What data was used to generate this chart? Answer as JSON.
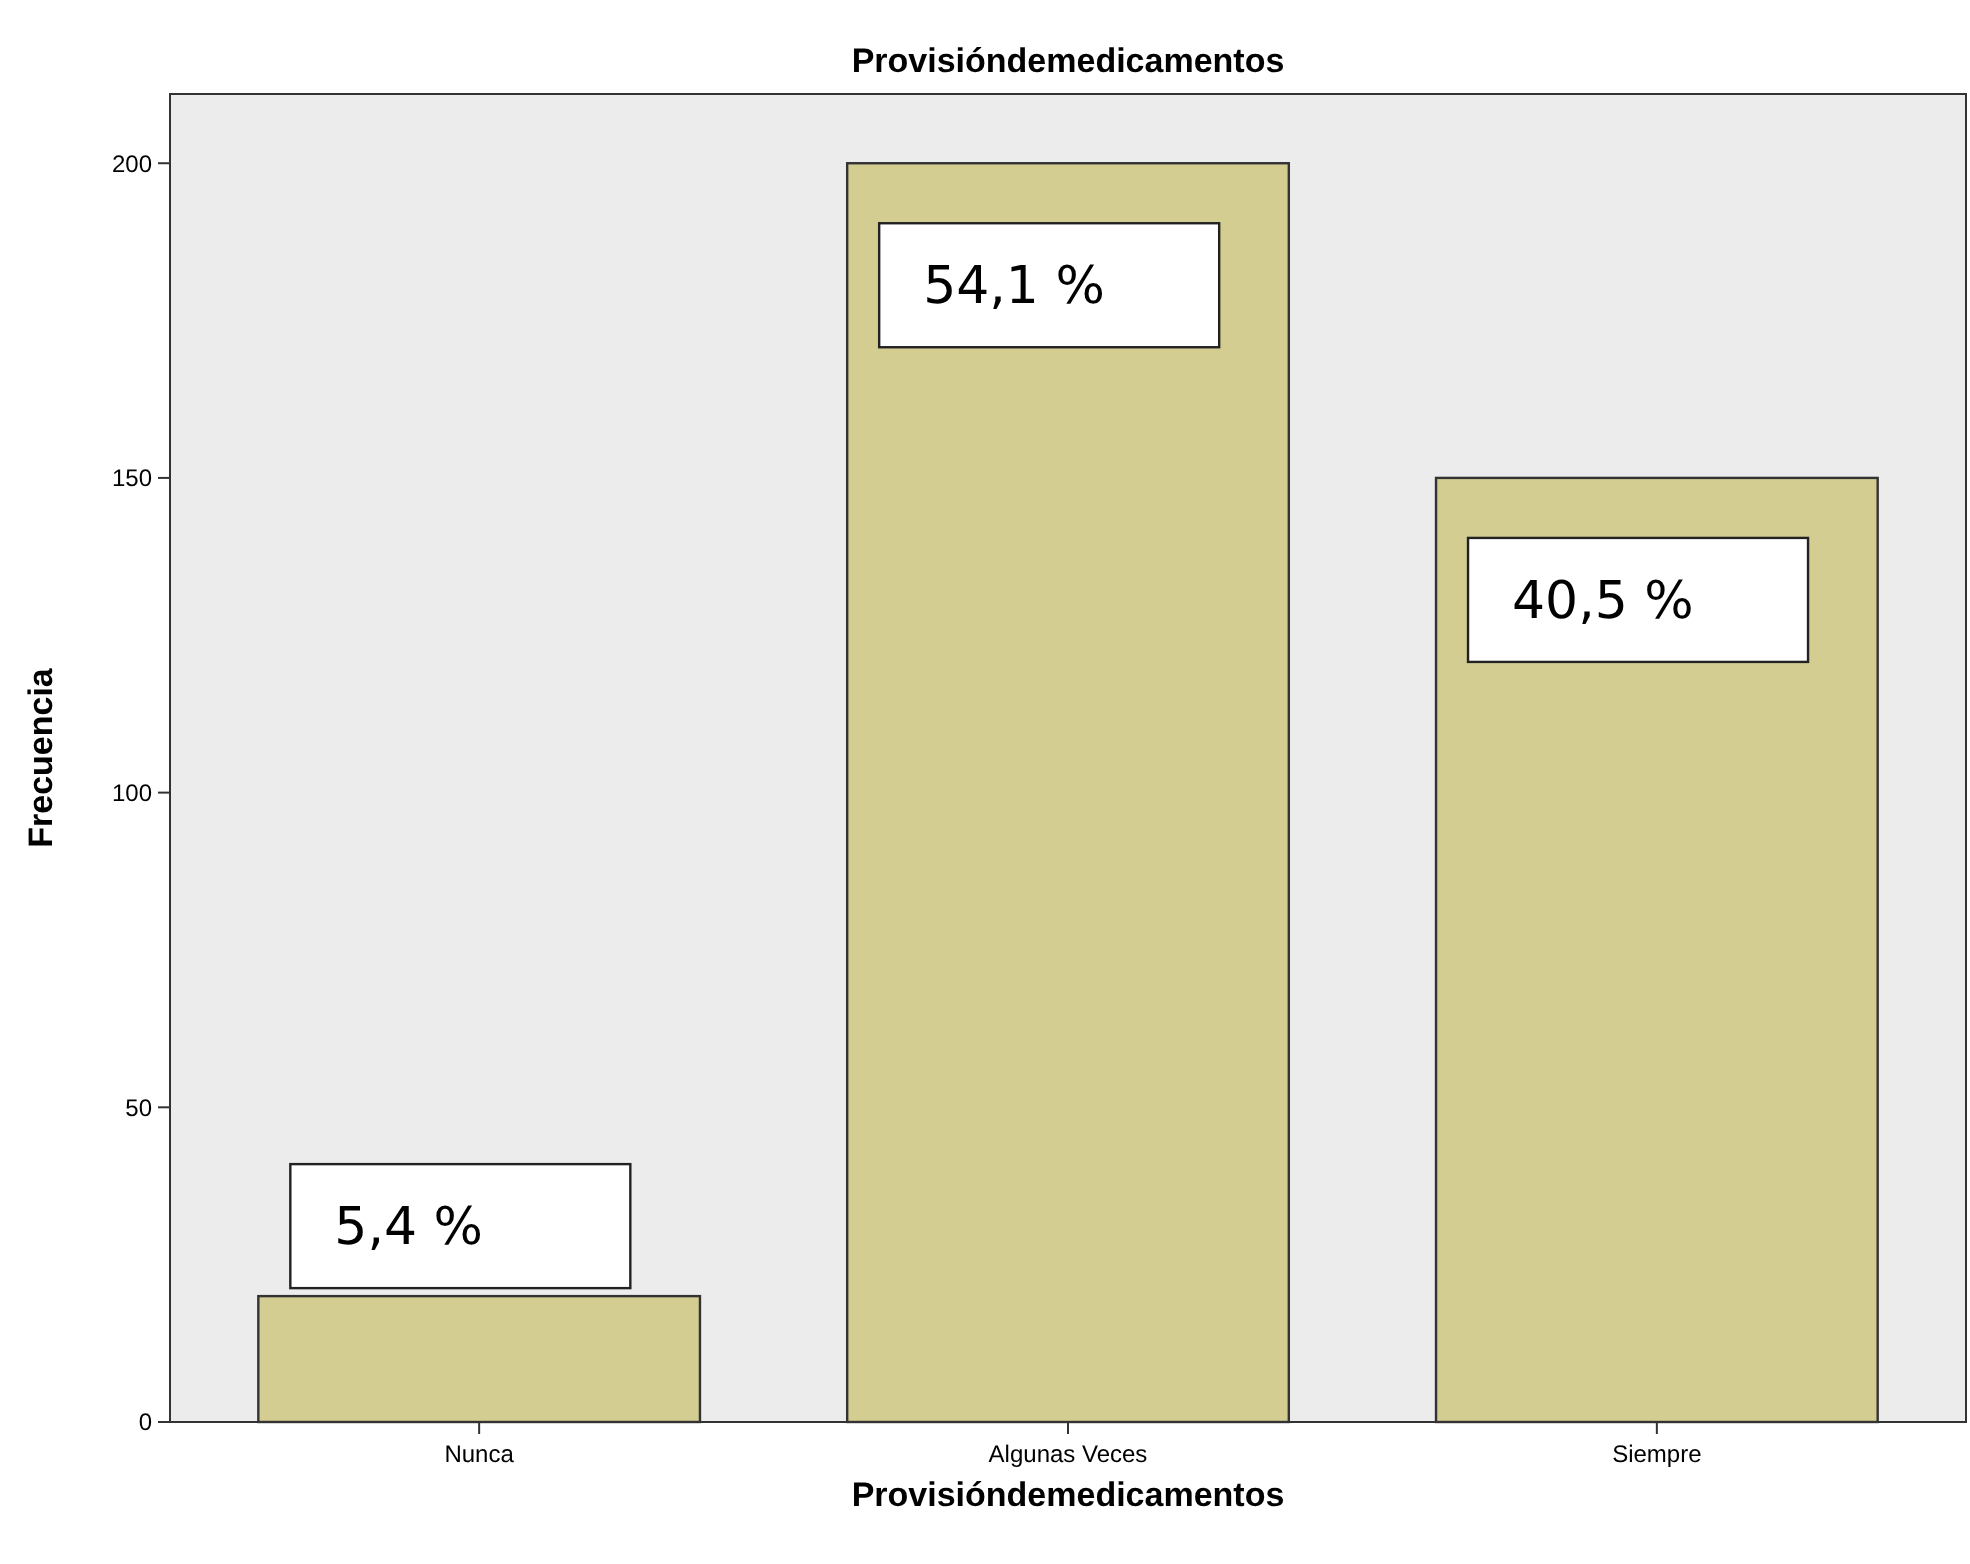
{
  "chart_data": {
    "type": "bar",
    "title": "Provisióndemedicamentos",
    "xlabel": "Provisióndemedicamentos",
    "ylabel": "Frecuencia",
    "categories": [
      "Nunca",
      "Algunas Veces",
      "Siempre"
    ],
    "values": [
      20,
      200,
      150
    ],
    "annotations": [
      {
        "text": "5,4 %",
        "x": "Nunca",
        "y": 20
      },
      {
        "text": "54,1 %",
        "x": "Algunas Veces",
        "y": 200
      },
      {
        "text": "40,5 %",
        "x": "Siempre",
        "y": 150
      }
    ],
    "color": "#d3cd92",
    "ylim": [
      0,
      211
    ],
    "yticks": [
      0,
      50,
      100,
      150,
      200
    ],
    "grid": false
  }
}
